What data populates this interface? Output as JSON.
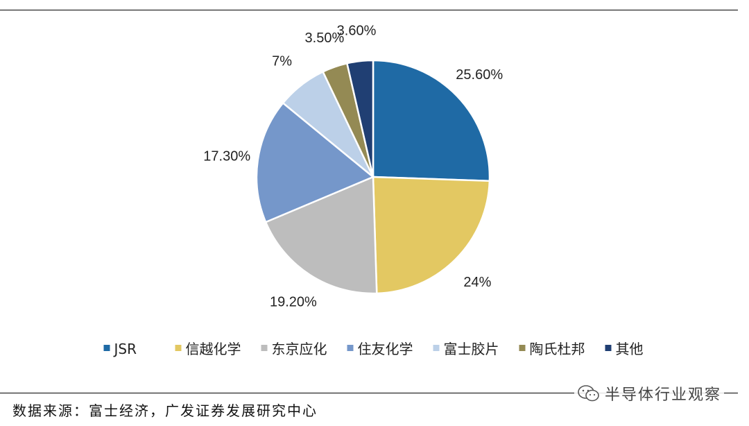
{
  "header": {
    "partial_title": ""
  },
  "chart_data": {
    "type": "pie",
    "title": "",
    "legend_position": "bottom",
    "slices": [
      {
        "name": "JSR",
        "value": 25.6,
        "label": "25.60%",
        "color": "#1f6aa5"
      },
      {
        "name": "信越化学",
        "value": 24.0,
        "label": "24%",
        "color": "#e3c862"
      },
      {
        "name": "东京应化",
        "value": 19.2,
        "label": "19.20%",
        "color": "#bdbdbd"
      },
      {
        "name": "住友化学",
        "value": 17.3,
        "label": "17.30%",
        "color": "#7597ca"
      },
      {
        "name": "富士胶片",
        "value": 7.0,
        "label": "7%",
        "color": "#bcd0e8"
      },
      {
        "name": "陶氏杜邦",
        "value": 3.5,
        "label": "3.50%",
        "color": "#948a54"
      },
      {
        "name": "其他",
        "value": 3.6,
        "label": "3.60%",
        "color": "#203f73"
      }
    ]
  },
  "footer": {
    "source": "数据来源：富士经济，广发证券发展研究中心",
    "watermark": "半导体行业观察"
  }
}
